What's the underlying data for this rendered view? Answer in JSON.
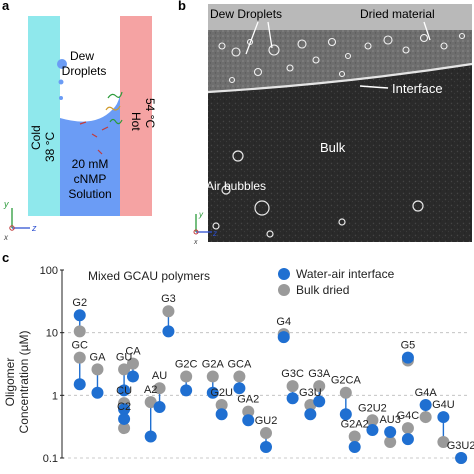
{
  "panels": {
    "a": "a",
    "b": "b",
    "c": "c"
  },
  "panel_a": {
    "cold_label": "Cold",
    "cold_temp": "38 °C",
    "hot_label": "Hot",
    "hot_temp": "54 °C",
    "dew_label_1": "Dew",
    "dew_label_2": "Droplets",
    "solution_line_1": "20 mM",
    "solution_line_2": "cNMP",
    "solution_line_3": "Solution",
    "axis_y": "y",
    "axis_z": "z",
    "axis_x": "x",
    "colors": {
      "cold": "#8fe8ec",
      "hot": "#f5a3a3",
      "solution": "#6b9cf5"
    }
  },
  "panel_b": {
    "dew_droplets": "Dew Droplets",
    "dried_material": "Dried material",
    "interface": "Interface",
    "bulk": "Bulk",
    "air_bubbles": "Air bubbles",
    "axis_y": "y",
    "axis_z": "z",
    "axis_x": "x"
  },
  "chart_data": {
    "type": "scatter",
    "title": "Mixed GCAU polymers",
    "ylabel_line1": "Oligomer",
    "ylabel_line2": "Concentration (µM)",
    "yscale": "log",
    "ylim": [
      0.1,
      100
    ],
    "yticks": [
      {
        "value": 100,
        "label": "100"
      },
      {
        "value": 10,
        "label": "10"
      },
      {
        "value": 1,
        "label": "1"
      },
      {
        "value": 0.1,
        "label": "0.1"
      }
    ],
    "grid": "dashed horizontal",
    "legend": [
      {
        "name": "Water-air interface",
        "color": "#1f6fd1"
      },
      {
        "name": "Bulk dried",
        "color": "#9a9a9a"
      }
    ],
    "points": [
      {
        "label": "G2",
        "x": 1.5,
        "interface": 19,
        "bulk": 10.5
      },
      {
        "label": "GC",
        "x": 1.5,
        "interface": 1.5,
        "bulk": 4
      },
      {
        "label": "GA",
        "x": 2.5,
        "interface": 1.1,
        "bulk": 2.6
      },
      {
        "label": "GU",
        "x": 4,
        "interface": 1.2,
        "bulk": 2.6
      },
      {
        "label": "CA",
        "x": 4.5,
        "interface": 2,
        "bulk": 3.2
      },
      {
        "label": "CU",
        "x": 4,
        "interface": 0.6,
        "bulk": 0.75
      },
      {
        "label": "C2",
        "x": 4,
        "interface": 0.42,
        "bulk": 0.3
      },
      {
        "label": "A2",
        "x": 5.5,
        "interface": 0.22,
        "bulk": 0.78
      },
      {
        "label": "AU",
        "x": 6,
        "interface": 0.65,
        "bulk": 1.3
      },
      {
        "label": "G3",
        "x": 6.5,
        "interface": 10.5,
        "bulk": 22
      },
      {
        "label": "G2C",
        "x": 7.5,
        "interface": 1.2,
        "bulk": 2
      },
      {
        "label": "G2A",
        "x": 9,
        "interface": 1.1,
        "bulk": 2
      },
      {
        "label": "G2U",
        "x": 9.5,
        "interface": 0.5,
        "bulk": 0.7
      },
      {
        "label": "GCA",
        "x": 10.5,
        "interface": 1.3,
        "bulk": 2
      },
      {
        "label": "GA2",
        "x": 11,
        "interface": 0.4,
        "bulk": 0.55
      },
      {
        "label": "GU2",
        "x": 12,
        "interface": 0.15,
        "bulk": 0.25
      },
      {
        "label": "G4",
        "x": 13,
        "interface": 8.5,
        "bulk": 9.5
      },
      {
        "label": "G3C",
        "x": 13.5,
        "interface": 0.9,
        "bulk": 1.4
      },
      {
        "label": "G3U",
        "x": 14.5,
        "interface": 0.5,
        "bulk": 0.7
      },
      {
        "label": "G3A",
        "x": 15,
        "interface": 0.8,
        "bulk": 1.4
      },
      {
        "label": "G2CA",
        "x": 16.5,
        "interface": 0.5,
        "bulk": 1.1
      },
      {
        "label": "G2A2",
        "x": 17,
        "interface": 0.15,
        "bulk": 0.22
      },
      {
        "label": "G2U2",
        "x": 18,
        "interface": 0.28,
        "bulk": 0.4
      },
      {
        "label": "AU3",
        "x": 19,
        "interface": 0.26,
        "bulk": 0.18
      },
      {
        "label": "G5",
        "x": 20,
        "interface": 4,
        "bulk": 3.6
      },
      {
        "label": "G4C",
        "x": 20,
        "interface": 0.2,
        "bulk": 0.3
      },
      {
        "label": "G4A",
        "x": 21,
        "interface": 0.7,
        "bulk": 0.45
      },
      {
        "label": "G4U",
        "x": 22,
        "interface": 0.45,
        "bulk": 0.18
      },
      {
        "label": "G3U2",
        "x": 23,
        "interface": 0.1,
        "bulk": 0.1
      }
    ]
  }
}
